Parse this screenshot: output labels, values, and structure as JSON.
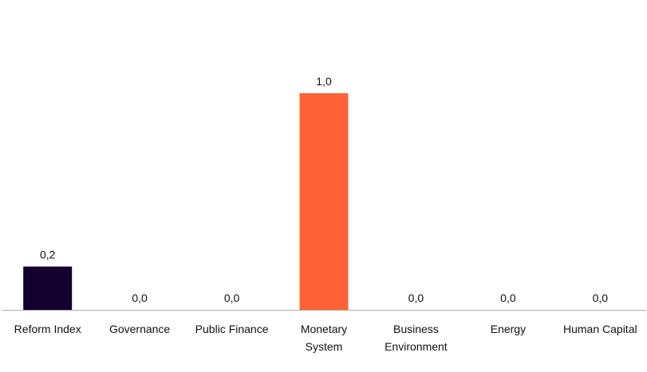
{
  "chart_data": {
    "type": "bar",
    "categories": [
      [
        "Reform Index"
      ],
      [
        "Governance"
      ],
      [
        "Public Finance"
      ],
      [
        "Monetary",
        "System"
      ],
      [
        "Business",
        "Environment"
      ],
      [
        "Energy"
      ],
      [
        "Human Capital"
      ]
    ],
    "values": [
      0.2,
      0.0,
      0.0,
      1.0,
      0.0,
      0.0,
      0.0
    ],
    "value_labels": [
      "0,2",
      "0,0",
      "0,0",
      "1,0",
      "0,0",
      "0,0",
      "0,0"
    ],
    "bar_colors": [
      "#12002e",
      "#ff6236",
      "#ff6236",
      "#ff6236",
      "#ff6236",
      "#ff6236",
      "#ff6236"
    ],
    "ylim": [
      0,
      1.2
    ],
    "grid": false,
    "legend": "none"
  }
}
